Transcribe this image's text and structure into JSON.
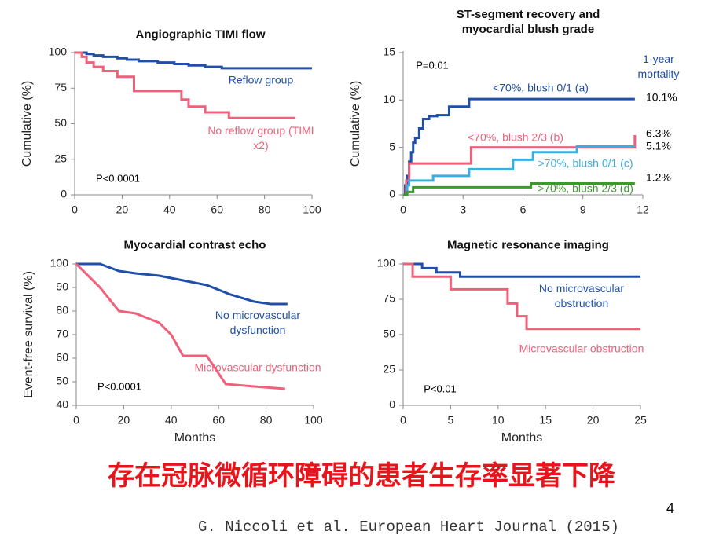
{
  "chart_data": [
    {
      "type": "step",
      "title": "Angiographic TIMI flow",
      "ylabel": "Cumulative (%)",
      "xlim": [
        0,
        100
      ],
      "xticks": [
        0,
        20,
        40,
        60,
        80,
        100
      ],
      "ylim": [
        0,
        100
      ],
      "yticks": [
        0,
        25,
        50,
        75,
        100
      ],
      "annotations": [
        "P<0.0001"
      ],
      "series": [
        {
          "name": "Reflow group",
          "color": "#1f4fa8",
          "x": [
            0,
            5,
            8,
            12,
            18,
            22,
            27,
            35,
            42,
            48,
            55,
            62,
            100
          ],
          "values": [
            100,
            99,
            98,
            97,
            96,
            95,
            94,
            93,
            92,
            91,
            90,
            89,
            89
          ]
        },
        {
          "name": "No reflow group (TIMI x2)",
          "color": "#f0607a",
          "x": [
            0,
            3,
            5,
            8,
            12,
            18,
            25,
            45,
            48,
            55,
            65,
            93
          ],
          "values": [
            100,
            97,
            93,
            90,
            87,
            83,
            73,
            67,
            62,
            58,
            54,
            54
          ]
        }
      ]
    },
    {
      "type": "step",
      "title": "ST-segment recovery and myocardial blush grade",
      "ylabel": "Cumulative (%)",
      "xlim": [
        0,
        12
      ],
      "xticks": [
        0,
        3,
        6,
        9,
        12
      ],
      "ylim": [
        0,
        15
      ],
      "yticks": [
        0,
        5,
        10,
        15
      ],
      "annotations": [
        "P=0.01",
        "1-year mortality"
      ],
      "series": [
        {
          "name": "<70%, blush 0/1 (a)",
          "color": "#1f4fa8",
          "x": [
            0,
            0.1,
            0.2,
            0.3,
            0.4,
            0.5,
            0.6,
            0.8,
            1,
            1.3,
            1.7,
            2.3,
            3.3,
            11.6
          ],
          "values": [
            0,
            1,
            2,
            3.5,
            4.5,
            5.5,
            6,
            7,
            8,
            8.3,
            8.4,
            9.3,
            10.1,
            10.1
          ],
          "value_labels": [
            null,
            null,
            null,
            null,
            null,
            null,
            null,
            null,
            null,
            null,
            null,
            null,
            null,
            "10.1%"
          ]
        },
        {
          "name": "<70%, blush 2/3 (b)",
          "color": "#f0607a",
          "x": [
            0,
            0.15,
            0.3,
            3.4,
            11.5,
            11.6
          ],
          "values": [
            0,
            1.5,
            3.3,
            5,
            5,
            6.3
          ],
          "value_labels": [
            null,
            null,
            null,
            null,
            null,
            "6.3%"
          ]
        },
        {
          "name": ">70%, blush 0/1 (c)",
          "color": "#3aaee0",
          "x": [
            0,
            0.2,
            0.3,
            1.5,
            3.3,
            5.5,
            6.5,
            8.7,
            11.6
          ],
          "values": [
            0,
            1,
            1.5,
            2,
            2.7,
            3.7,
            4.5,
            5.1,
            5.1
          ],
          "value_labels": [
            null,
            null,
            null,
            null,
            null,
            null,
            null,
            null,
            "5.1%"
          ]
        },
        {
          "name": ">70%, blush 2/3 (d)",
          "color": "#3a9a2a",
          "x": [
            0,
            0.2,
            0.5,
            6.4,
            11.6
          ],
          "values": [
            0,
            0.3,
            0.8,
            1.2,
            1.2
          ],
          "value_labels": [
            null,
            null,
            null,
            null,
            "1.2%"
          ]
        }
      ]
    },
    {
      "type": "line",
      "title": "Myocardial contrast echo",
      "xlabel": "Months",
      "ylabel": "Event-free survival (%)",
      "xlim": [
        0,
        100
      ],
      "xticks": [
        0,
        20,
        40,
        60,
        80,
        100
      ],
      "ylim": [
        40,
        100
      ],
      "yticks": [
        40,
        50,
        60,
        70,
        80,
        90,
        100
      ],
      "annotations": [
        "P<0.0001"
      ],
      "series": [
        {
          "name": "No microvascular dysfunction",
          "color": "#1f4fa8",
          "x": [
            0,
            10,
            18,
            25,
            35,
            45,
            55,
            65,
            75,
            82,
            89
          ],
          "values": [
            100,
            100,
            97,
            96,
            95,
            93,
            91,
            87,
            84,
            83,
            83
          ]
        },
        {
          "name": "Microvascular dysfunction",
          "color": "#f0607a",
          "x": [
            0,
            10,
            18,
            25,
            30,
            35,
            40,
            45,
            55,
            63,
            75,
            88
          ],
          "values": [
            100,
            90,
            80,
            79,
            77,
            75,
            70,
            61,
            61,
            49,
            48,
            47
          ]
        }
      ]
    },
    {
      "type": "step",
      "title": "Magnetic resonance imaging",
      "xlabel": "Months",
      "xlim": [
        0,
        25
      ],
      "xticks": [
        0,
        5,
        10,
        15,
        20,
        25
      ],
      "ylim": [
        0,
        100
      ],
      "yticks": [
        0,
        25,
        50,
        75,
        100
      ],
      "annotations": [
        "P<0.01"
      ],
      "series": [
        {
          "name": "No microvascular obstruction",
          "color": "#1f4fa8",
          "x": [
            0,
            2,
            3.5,
            6,
            25
          ],
          "values": [
            100,
            97,
            94,
            91,
            91
          ]
        },
        {
          "name": "Microvascular obstruction",
          "color": "#f0607a",
          "x": [
            0,
            1,
            5,
            11,
            12,
            13,
            25
          ],
          "values": [
            100,
            91,
            82,
            72,
            63,
            54,
            54
          ]
        }
      ]
    }
  ],
  "caption": "存在冠脉微循环障碍的患者生存率显著下降",
  "page_number": "4",
  "citation": "G. Niccoli et al. European Heart Journal (2015)"
}
